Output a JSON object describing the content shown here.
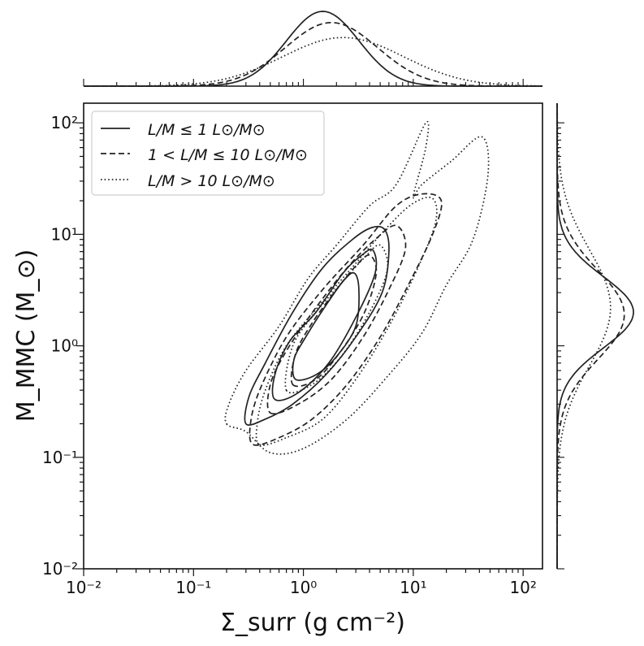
{
  "chart_data": {
    "type": "contour",
    "xlabel": "Σ_surr (g cm⁻²)",
    "ylabel": "M_MMC (M_⊙)",
    "x_scale": "log",
    "y_scale": "log",
    "xlim": [
      0.01,
      150
    ],
    "ylim": [
      0.01,
      150
    ],
    "x_ticks": [
      "10⁻²",
      "10⁻¹",
      "10⁰",
      "10¹",
      "10²"
    ],
    "y_ticks": [
      "10⁻²",
      "10⁻¹",
      "10⁰",
      "10¹",
      "10²"
    ],
    "grid": false,
    "legend_position": "top-left",
    "legend": [
      {
        "label": "L/M ≤ 1 L⊙/M⊙",
        "style": "solid"
      },
      {
        "label": "1 < L/M ≤ 10 L⊙/M⊙",
        "style": "dashed"
      },
      {
        "label": "L/M > 10 L⊙/M⊙",
        "style": "dotted"
      }
    ],
    "series": [
      {
        "style": "solid",
        "contours": [
          [
            [
              0.3,
              0.2
            ],
            [
              0.45,
              0.22
            ],
            [
              0.8,
              0.3
            ],
            [
              1.6,
              0.55
            ],
            [
              3,
              1.2
            ],
            [
              5.2,
              3
            ],
            [
              6,
              7
            ],
            [
              5.5,
              11
            ],
            [
              4.2,
              11.5
            ],
            [
              2.8,
              9
            ],
            [
              1.5,
              5
            ],
            [
              0.8,
              2
            ],
            [
              0.45,
              0.7
            ],
            [
              0.32,
              0.35
            ]
          ],
          [
            [
              0.55,
              0.33
            ],
            [
              0.9,
              0.38
            ],
            [
              1.7,
              0.7
            ],
            [
              3,
              1.8
            ],
            [
              4.5,
              4.5
            ],
            [
              4.3,
              7.2
            ],
            [
              3.4,
              6.5
            ],
            [
              2.3,
              4.5
            ],
            [
              1.3,
              2
            ],
            [
              0.75,
              1.1
            ],
            [
              0.55,
              0.55
            ]
          ],
          [
            [
              0.85,
              0.5
            ],
            [
              1.3,
              0.55
            ],
            [
              2,
              0.8
            ],
            [
              3,
              1.5
            ],
            [
              3.2,
              3.2
            ],
            [
              2.9,
              4.5
            ],
            [
              2.3,
              3.8
            ],
            [
              1.6,
              2.3
            ],
            [
              1.05,
              1.2
            ],
            [
              0.82,
              0.75
            ]
          ]
        ],
        "marginal_x": {
          "peak_x": 1.5,
          "width_dex": 0.33,
          "height": 1.0
        },
        "marginal_y": {
          "peak_y": 2.0,
          "width_dex": 0.32,
          "height": 1.0
        }
      },
      {
        "style": "dashed",
        "contours": [
          [
            [
              0.35,
              0.13
            ],
            [
              0.6,
              0.15
            ],
            [
              1.2,
              0.22
            ],
            [
              2.5,
              0.45
            ],
            [
              5,
              1.2
            ],
            [
              9,
              3.5
            ],
            [
              15,
              10
            ],
            [
              18,
              20
            ],
            [
              12,
              23
            ],
            [
              7,
              18
            ],
            [
              3.5,
              8
            ],
            [
              1.5,
              3.2
            ],
            [
              0.7,
              1.2
            ],
            [
              0.4,
              0.4
            ],
            [
              0.33,
              0.2
            ]
          ],
          [
            [
              0.5,
              0.25
            ],
            [
              0.9,
              0.3
            ],
            [
              1.8,
              0.5
            ],
            [
              3.5,
              1.2
            ],
            [
              6,
              3.2
            ],
            [
              8.5,
              7.5
            ],
            [
              7,
              12
            ],
            [
              4.5,
              9
            ],
            [
              2.5,
              5
            ],
            [
              1.3,
              2.2
            ],
            [
              0.7,
              0.9
            ],
            [
              0.5,
              0.45
            ]
          ],
          [
            [
              0.8,
              0.45
            ],
            [
              1.3,
              0.5
            ],
            [
              2.2,
              0.9
            ],
            [
              3.6,
              2
            ],
            [
              4.6,
              4.5
            ],
            [
              4,
              6.5
            ],
            [
              3,
              5.2
            ],
            [
              2,
              3.2
            ],
            [
              1.2,
              1.6
            ],
            [
              0.85,
              0.85
            ]
          ]
        ],
        "marginal_x": {
          "peak_x": 1.8,
          "width_dex": 0.42,
          "height": 0.85
        },
        "marginal_y": {
          "peak_y": 1.9,
          "width_dex": 0.4,
          "height": 0.88
        }
      },
      {
        "style": "dotted",
        "contours": [
          [
            [
              0.2,
              0.2
            ],
            [
              0.3,
              0.17
            ],
            [
              0.5,
              0.11
            ],
            [
              1,
              0.12
            ],
            [
              2.5,
              0.22
            ],
            [
              6,
              0.55
            ],
            [
              12,
              1.3
            ],
            [
              20,
              3.5
            ],
            [
              35,
              9
            ],
            [
              48,
              35
            ],
            [
              42,
              75
            ],
            [
              22,
              45
            ],
            [
              12,
              28
            ],
            [
              10,
              22
            ],
            [
              13,
              60
            ],
            [
              13,
              100
            ],
            [
              7,
              28
            ],
            [
              4,
              18
            ],
            [
              2,
              8
            ],
            [
              1.1,
              4
            ],
            [
              0.6,
              1.5
            ],
            [
              0.3,
              0.6
            ],
            [
              0.21,
              0.3
            ]
          ],
          [
            [
              0.4,
              0.13
            ],
            [
              0.7,
              0.15
            ],
            [
              1.5,
              0.22
            ],
            [
              3,
              0.5
            ],
            [
              6,
              1.5
            ],
            [
              11,
              5
            ],
            [
              16,
              13
            ],
            [
              15,
              21
            ],
            [
              10,
              19
            ],
            [
              6,
              12
            ],
            [
              3,
              5.5
            ],
            [
              1.5,
              2.5
            ],
            [
              0.7,
              1
            ],
            [
              0.45,
              0.4
            ],
            [
              0.38,
              0.2
            ]
          ],
          [
            [
              0.7,
              0.4
            ],
            [
              1.2,
              0.45
            ],
            [
              2.2,
              0.8
            ],
            [
              4,
              2
            ],
            [
              5.8,
              4.8
            ],
            [
              5,
              8
            ],
            [
              3.6,
              6.2
            ],
            [
              2.3,
              3.8
            ],
            [
              1.3,
              2
            ],
            [
              0.8,
              1
            ]
          ]
        ],
        "marginal_x": {
          "peak_x": 2.3,
          "width_dex": 0.55,
          "height": 0.65
        },
        "marginal_y": {
          "peak_y": 2.2,
          "width_dex": 0.52,
          "height": 0.7
        }
      }
    ]
  }
}
